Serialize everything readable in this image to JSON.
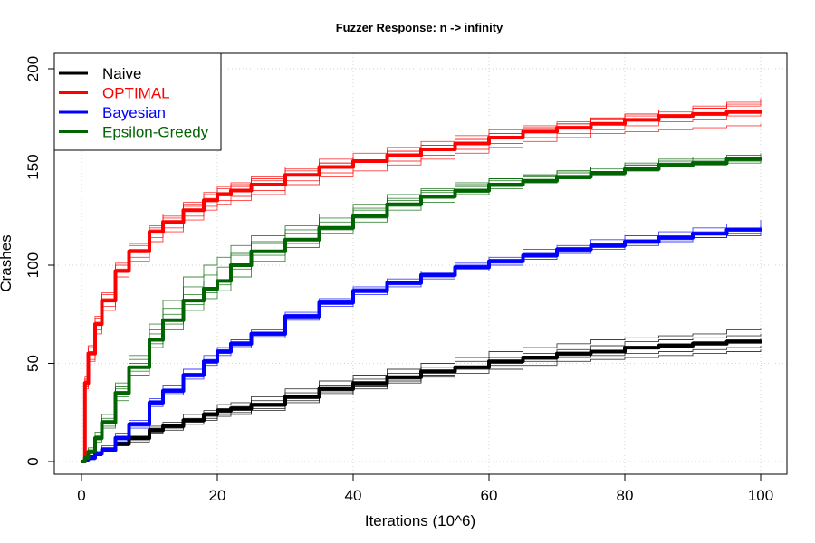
{
  "chart_data": {
    "type": "line",
    "title": "Fuzzer Response: n -> infinity",
    "xlabel": "Iterations (10^6)",
    "ylabel": "Crashes",
    "xlim": [
      0,
      100
    ],
    "ylim": [
      0,
      200
    ],
    "xticks": [
      0,
      20,
      40,
      60,
      80,
      100
    ],
    "yticks": [
      0,
      50,
      100,
      150,
      200
    ],
    "grid": true,
    "legend_position": "top-left",
    "x": [
      0,
      0.5,
      1,
      2,
      3,
      5,
      7,
      10,
      12,
      15,
      18,
      20,
      22,
      25,
      30,
      35,
      40,
      45,
      50,
      55,
      60,
      65,
      70,
      75,
      80,
      85,
      90,
      95,
      100
    ],
    "series": [
      {
        "name": "Naive",
        "color": "#000000",
        "values": [
          0,
          1,
          2,
          4,
          6,
          9,
          12,
          16,
          18,
          21,
          24,
          26,
          27,
          29,
          33,
          37,
          40,
          43,
          46,
          48,
          51,
          53,
          55,
          56,
          58,
          59,
          60,
          61,
          62
        ],
        "runs": [
          [
            0,
            1,
            2,
            5,
            7,
            10,
            13,
            18,
            20,
            24,
            26,
            29,
            30,
            33,
            37,
            41,
            44,
            47,
            50,
            53,
            56,
            58,
            60,
            62,
            63,
            64,
            65,
            67,
            68
          ],
          [
            0,
            1,
            2,
            4,
            6,
            9,
            11,
            15,
            17,
            20,
            22,
            24,
            25,
            27,
            31,
            35,
            38,
            41,
            44,
            47,
            49,
            51,
            53,
            54,
            55,
            56,
            57,
            58,
            59
          ],
          [
            0,
            1,
            3,
            5,
            7,
            10,
            12,
            17,
            19,
            22,
            25,
            27,
            28,
            31,
            35,
            39,
            42,
            45,
            48,
            51,
            53,
            55,
            57,
            59,
            61,
            62,
            63,
            64,
            65
          ],
          [
            0,
            0,
            1,
            3,
            5,
            8,
            10,
            14,
            16,
            19,
            21,
            23,
            24,
            26,
            30,
            34,
            37,
            40,
            43,
            45,
            47,
            49,
            51,
            52,
            53,
            54,
            55,
            56,
            57
          ],
          [
            0,
            1,
            2,
            4,
            6,
            9,
            12,
            16,
            18,
            21,
            23,
            25,
            26,
            28,
            32,
            36,
            39,
            42,
            45,
            48,
            50,
            52,
            54,
            56,
            58,
            60,
            61,
            62,
            63
          ]
        ]
      },
      {
        "name": "OPTIMAL",
        "color": "#ff0000",
        "values": [
          0,
          40,
          55,
          70,
          82,
          97,
          107,
          117,
          122,
          128,
          133,
          136,
          138,
          141,
          146,
          150,
          153,
          156,
          159,
          162,
          165,
          168,
          170,
          172,
          174,
          176,
          177,
          178,
          179
        ],
        "runs": [
          [
            0,
            42,
            58,
            73,
            85,
            100,
            110,
            119,
            125,
            131,
            136,
            139,
            141,
            144,
            149,
            152,
            155,
            158,
            161,
            164,
            167,
            170,
            172,
            174,
            176,
            178,
            180,
            182,
            184
          ],
          [
            0,
            38,
            52,
            67,
            79,
            94,
            104,
            114,
            119,
            125,
            130,
            133,
            135,
            138,
            143,
            147,
            150,
            153,
            156,
            159,
            162,
            165,
            167,
            169,
            171,
            173,
            174,
            176,
            177
          ],
          [
            0,
            41,
            56,
            71,
            83,
            98,
            108,
            118,
            124,
            130,
            134,
            137,
            140,
            143,
            148,
            152,
            155,
            158,
            161,
            164,
            167,
            170,
            172,
            175,
            177,
            179,
            180,
            181,
            182
          ],
          [
            0,
            37,
            51,
            65,
            77,
            92,
            102,
            112,
            117,
            123,
            128,
            131,
            133,
            136,
            141,
            145,
            148,
            151,
            154,
            157,
            160,
            163,
            165,
            167,
            168,
            169,
            170,
            171,
            172
          ],
          [
            0,
            43,
            59,
            74,
            86,
            101,
            111,
            120,
            126,
            132,
            137,
            140,
            142,
            145,
            150,
            154,
            157,
            160,
            163,
            166,
            169,
            171,
            173,
            175,
            177,
            179,
            181,
            183,
            185
          ]
        ]
      },
      {
        "name": "Bayesian",
        "color": "#0000ff",
        "values": [
          0,
          1,
          2,
          4,
          6,
          12,
          19,
          30,
          36,
          44,
          51,
          56,
          60,
          65,
          74,
          81,
          87,
          91,
          95,
          99,
          102,
          105,
          108,
          110,
          112,
          114,
          116,
          118,
          119
        ],
        "runs": [
          [
            0,
            1,
            3,
            5,
            8,
            14,
            21,
            32,
            39,
            47,
            54,
            58,
            62,
            67,
            76,
            83,
            89,
            93,
            97,
            101,
            104,
            108,
            110,
            113,
            115,
            117,
            119,
            121,
            123
          ],
          [
            0,
            1,
            2,
            3,
            5,
            10,
            17,
            28,
            34,
            42,
            49,
            54,
            58,
            63,
            72,
            79,
            85,
            89,
            93,
            97,
            100,
            103,
            106,
            108,
            110,
            112,
            114,
            116,
            117
          ],
          [
            0,
            1,
            2,
            4,
            7,
            13,
            20,
            31,
            37,
            45,
            52,
            57,
            61,
            66,
            75,
            82,
            88,
            92,
            96,
            100,
            103,
            106,
            109,
            111,
            113,
            115,
            117,
            119,
            121
          ],
          [
            0,
            0,
            1,
            3,
            5,
            11,
            18,
            29,
            35,
            43,
            50,
            55,
            59,
            64,
            73,
            80,
            86,
            90,
            94,
            98,
            101,
            104,
            107,
            109,
            111,
            113,
            114,
            115,
            116
          ],
          [
            0,
            1,
            2,
            4,
            6,
            12,
            19,
            30,
            36,
            44,
            51,
            56,
            60,
            65,
            74,
            81,
            87,
            91,
            95,
            99,
            102,
            105,
            108,
            110,
            112,
            114,
            116,
            118,
            120
          ]
        ]
      },
      {
        "name": "Epsilon-Greedy",
        "color": "#006400",
        "values": [
          0,
          2,
          5,
          12,
          20,
          35,
          48,
          62,
          72,
          82,
          88,
          92,
          100,
          107,
          113,
          119,
          125,
          131,
          135,
          138,
          141,
          143,
          145,
          147,
          149,
          151,
          152,
          154,
          155
        ],
        "runs": [
          [
            0,
            3,
            7,
            15,
            24,
            40,
            54,
            70,
            82,
            94,
            100,
            104,
            110,
            115,
            120,
            126,
            131,
            136,
            139,
            142,
            144,
            146,
            148,
            150,
            151,
            152,
            153,
            154,
            155
          ],
          [
            0,
            2,
            4,
            10,
            17,
            31,
            44,
            58,
            67,
            77,
            83,
            87,
            94,
            102,
            109,
            116,
            122,
            128,
            132,
            136,
            139,
            142,
            144,
            146,
            148,
            150,
            152,
            153,
            154
          ],
          [
            0,
            3,
            6,
            13,
            21,
            37,
            50,
            65,
            75,
            85,
            92,
            97,
            105,
            111,
            116,
            122,
            128,
            133,
            137,
            140,
            143,
            145,
            147,
            149,
            151,
            153,
            154,
            155,
            156
          ],
          [
            0,
            1,
            4,
            11,
            18,
            33,
            46,
            60,
            70,
            80,
            86,
            90,
            98,
            105,
            111,
            118,
            124,
            130,
            134,
            137,
            140,
            142,
            144,
            146,
            148,
            150,
            151,
            152,
            153
          ],
          [
            0,
            2,
            5,
            13,
            22,
            38,
            52,
            67,
            78,
            89,
            95,
            99,
            106,
            112,
            118,
            124,
            129,
            134,
            138,
            141,
            144,
            146,
            148,
            150,
            152,
            154,
            155,
            156,
            157
          ]
        ]
      }
    ]
  }
}
